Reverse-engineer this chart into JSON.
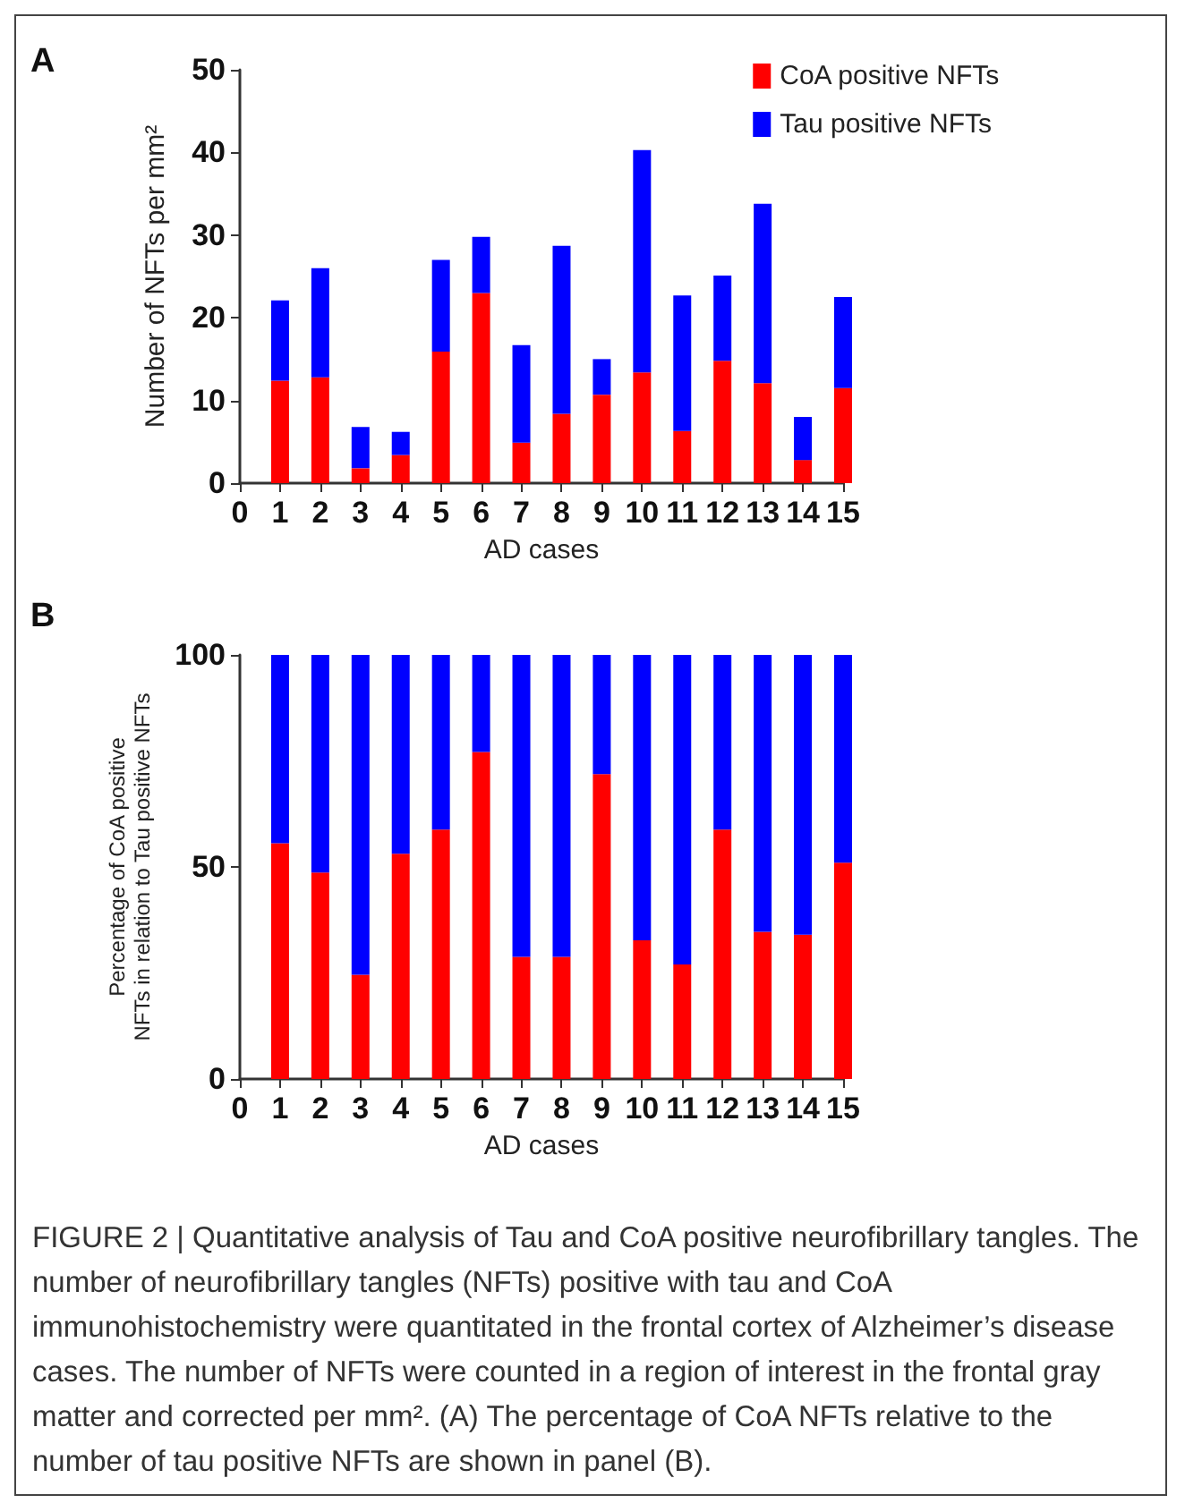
{
  "chart_data": [
    {
      "type": "bar",
      "title": "A",
      "xlabel": "AD cases",
      "ylabel": "Number of NFTs per mm²",
      "stacked": true,
      "x": [
        1,
        2,
        3,
        4,
        5,
        6,
        7,
        8,
        9,
        10,
        11,
        12,
        13,
        14,
        15
      ],
      "xlim": [
        0,
        15
      ],
      "xticks": [
        0,
        1,
        2,
        3,
        4,
        5,
        6,
        7,
        8,
        9,
        10,
        11,
        12,
        13,
        14,
        15
      ],
      "ylim": [
        0,
        50
      ],
      "yticks": [
        0,
        10,
        20,
        30,
        40,
        50
      ],
      "grid": false,
      "legend": "top right",
      "series": [
        {
          "name": "CoA positive NFTs",
          "color": "#ff0000",
          "values": [
            12.4,
            12.8,
            1.8,
            3.4,
            15.9,
            23.0,
            4.9,
            8.4,
            10.7,
            13.4,
            6.3,
            14.8,
            12.1,
            2.8,
            11.5
          ]
        },
        {
          "name": "Tau positive NFTs",
          "color": "#0000ff",
          "values": [
            9.7,
            13.2,
            5.0,
            2.8,
            11.1,
            6.8,
            11.8,
            20.3,
            4.3,
            26.9,
            16.4,
            10.3,
            21.7,
            5.2,
            11.0
          ]
        }
      ]
    },
    {
      "type": "bar",
      "title": "B",
      "xlabel": "AD cases",
      "ylabel": "Percentage of CoA positive\nNFTs in relation to Tau positive NFTs",
      "stacked": true,
      "x": [
        1,
        2,
        3,
        4,
        5,
        6,
        7,
        8,
        9,
        10,
        11,
        12,
        13,
        14,
        15
      ],
      "xlim": [
        0,
        15
      ],
      "xticks": [
        0,
        1,
        2,
        3,
        4,
        5,
        6,
        7,
        8,
        9,
        10,
        11,
        12,
        13,
        14,
        15
      ],
      "ylim": [
        0,
        100
      ],
      "yticks": [
        0,
        50,
        100
      ],
      "grid": false,
      "legend": false,
      "series": [
        {
          "color": "#ff0000",
          "values": [
            55.6,
            48.7,
            24.6,
            53.1,
            58.8,
            77.1,
            28.8,
            28.8,
            71.9,
            32.7,
            27.0,
            58.8,
            34.7,
            34.0,
            51.0
          ]
        },
        {
          "color": "#0000ff",
          "values": [
            44.4,
            51.3,
            75.4,
            46.9,
            41.2,
            22.9,
            71.2,
            71.2,
            28.1,
            67.3,
            73.0,
            41.2,
            65.3,
            66.0,
            49.0
          ]
        }
      ],
      "annotations": [
        "FIGURE 2 | Quantitative analysis of Tau and CoA positive neurofibrillary tangles. The number of neurofibrillary tangles (NFTs) positive with tau and CoA immunohistochemistry were quantitated in the frontal cortex of Alzheimer’s disease cases. The number of NFTs were counted in a region of interest in the frontal gray matter and corrected per mm². (A) The percentage of CoA NFTs relative to the number of tau positive NFTs are shown in panel (B)."
      ]
    }
  ]
}
